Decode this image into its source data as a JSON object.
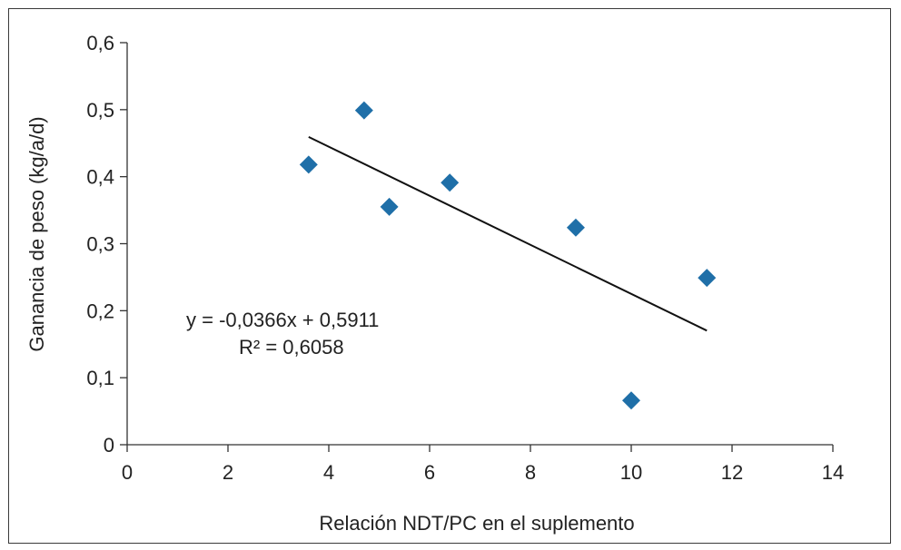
{
  "chart_data": {
    "type": "scatter",
    "xlabel": "Relación NDT/PC en el suplemento",
    "ylabel": "Ganancia de peso (kg/a/d)",
    "xlim": [
      0,
      14
    ],
    "ylim": [
      0,
      0.6
    ],
    "x_ticks": [
      0,
      2,
      4,
      6,
      8,
      10,
      12,
      14
    ],
    "y_ticks": [
      0,
      0.1,
      0.2,
      0.3,
      0.4,
      0.5,
      0.6
    ],
    "x_tick_labels": [
      "0",
      "2",
      "4",
      "6",
      "8",
      "10",
      "12",
      "14"
    ],
    "y_tick_labels": [
      "0",
      "0,1",
      "0,2",
      "0,3",
      "0,4",
      "0,5",
      "0,6"
    ],
    "grid": false,
    "marker_color": "#1f6fa8",
    "trendline_color": "#111111",
    "points": [
      {
        "x": 3.6,
        "y": 0.418
      },
      {
        "x": 4.7,
        "y": 0.499
      },
      {
        "x": 5.2,
        "y": 0.355
      },
      {
        "x": 6.4,
        "y": 0.391
      },
      {
        "x": 8.9,
        "y": 0.324
      },
      {
        "x": 10.0,
        "y": 0.066
      },
      {
        "x": 11.5,
        "y": 0.249
      }
    ],
    "trendline": {
      "slope": -0.0366,
      "intercept": 0.5911,
      "x_range": [
        3.6,
        11.5
      ],
      "equation": "y = -0,0366x + 0,5911",
      "r_squared": "R² = 0,6058"
    }
  }
}
